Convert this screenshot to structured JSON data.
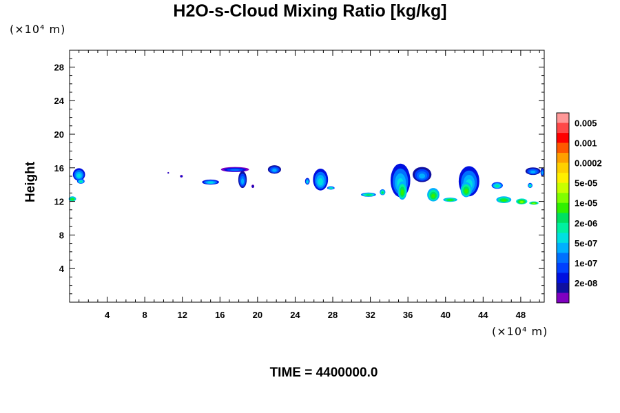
{
  "chart_data": {
    "type": "heatmap",
    "title": "H2O-s-Cloud Mixing Ratio [kg/kg]",
    "ylabel": "Height",
    "x_unit": "(×10⁴ m)",
    "y_unit": "(×10⁴ m)",
    "xlim": [
      0,
      50.5
    ],
    "ylim": [
      0,
      30
    ],
    "x_ticks": [
      "4",
      "8",
      "12",
      "16",
      "20",
      "24",
      "28",
      "32",
      "36",
      "40",
      "44",
      "48"
    ],
    "y_ticks": [
      "4",
      "8",
      "12",
      "16",
      "20",
      "24",
      "28"
    ],
    "time_label": "TIME = 4400000.0",
    "colorbar": {
      "labels": [
        "0.005",
        "0.001",
        "0.0002",
        "5e-05",
        "1e-05",
        "2e-06",
        "5e-07",
        "1e-07",
        "2e-08"
      ],
      "colors_top_to_bottom": [
        "#ff9898",
        "#ff4848",
        "#ff0000",
        "#ff5800",
        "#ffa000",
        "#ffd000",
        "#fff000",
        "#c8ff00",
        "#80ff00",
        "#30f000",
        "#00e060",
        "#00f0a0",
        "#00e0e0",
        "#00b0ff",
        "#0070ff",
        "#0040ff",
        "#0010e0",
        "#1010a0",
        "#8000c0"
      ]
    },
    "cloud_regions": [
      {
        "x": 1.0,
        "y": 15.2,
        "w": 1.3,
        "h": 1.5,
        "level": 6
      },
      {
        "x": 1.2,
        "y": 14.4,
        "w": 0.8,
        "h": 0.6,
        "level": 7
      },
      {
        "x": 0.3,
        "y": 12.3,
        "w": 0.8,
        "h": 0.6,
        "level": 9
      },
      {
        "x": 10.5,
        "y": 15.4,
        "w": 0.1,
        "h": 0.1,
        "level": 3
      },
      {
        "x": 11.9,
        "y": 15.0,
        "w": 0.3,
        "h": 0.3,
        "level": 2
      },
      {
        "x": 15.0,
        "y": 14.3,
        "w": 1.8,
        "h": 0.6,
        "level": 6
      },
      {
        "x": 17.6,
        "y": 15.8,
        "w": 3.0,
        "h": 0.6,
        "level": 4
      },
      {
        "x": 18.4,
        "y": 14.6,
        "w": 0.9,
        "h": 2.0,
        "level": 5
      },
      {
        "x": 19.5,
        "y": 13.8,
        "w": 0.3,
        "h": 0.4,
        "level": 2
      },
      {
        "x": 21.8,
        "y": 15.8,
        "w": 1.4,
        "h": 1.0,
        "level": 5
      },
      {
        "x": 25.3,
        "y": 14.4,
        "w": 0.5,
        "h": 0.8,
        "level": 6
      },
      {
        "x": 26.7,
        "y": 14.6,
        "w": 1.6,
        "h": 2.6,
        "level": 6
      },
      {
        "x": 27.8,
        "y": 13.6,
        "w": 0.8,
        "h": 0.4,
        "level": 7
      },
      {
        "x": 31.8,
        "y": 12.8,
        "w": 1.6,
        "h": 0.5,
        "level": 8
      },
      {
        "x": 33.3,
        "y": 13.1,
        "w": 0.6,
        "h": 0.7,
        "level": 8
      },
      {
        "x": 35.2,
        "y": 14.5,
        "w": 2.1,
        "h": 4.0,
        "level": 6
      },
      {
        "x": 35.4,
        "y": 13.3,
        "w": 1.0,
        "h": 2.2,
        "level": 9
      },
      {
        "x": 37.5,
        "y": 15.2,
        "w": 2.0,
        "h": 1.8,
        "level": 5
      },
      {
        "x": 38.7,
        "y": 12.8,
        "w": 1.3,
        "h": 1.6,
        "level": 9
      },
      {
        "x": 40.5,
        "y": 12.2,
        "w": 1.5,
        "h": 0.5,
        "level": 9
      },
      {
        "x": 42.5,
        "y": 14.4,
        "w": 2.2,
        "h": 3.6,
        "level": 6
      },
      {
        "x": 42.2,
        "y": 13.4,
        "w": 1.2,
        "h": 1.8,
        "level": 9
      },
      {
        "x": 45.5,
        "y": 13.9,
        "w": 1.2,
        "h": 0.8,
        "level": 7
      },
      {
        "x": 46.2,
        "y": 12.2,
        "w": 1.6,
        "h": 0.8,
        "level": 9
      },
      {
        "x": 48.1,
        "y": 12.0,
        "w": 1.2,
        "h": 0.7,
        "level": 10
      },
      {
        "x": 49.4,
        "y": 11.8,
        "w": 1.0,
        "h": 0.4,
        "level": 10
      },
      {
        "x": 49.3,
        "y": 15.6,
        "w": 1.6,
        "h": 0.9,
        "level": 5
      },
      {
        "x": 49.0,
        "y": 13.9,
        "w": 0.5,
        "h": 0.6,
        "level": 7
      },
      {
        "x": 50.3,
        "y": 15.5,
        "w": 0.4,
        "h": 1.0,
        "level": 5
      }
    ]
  }
}
